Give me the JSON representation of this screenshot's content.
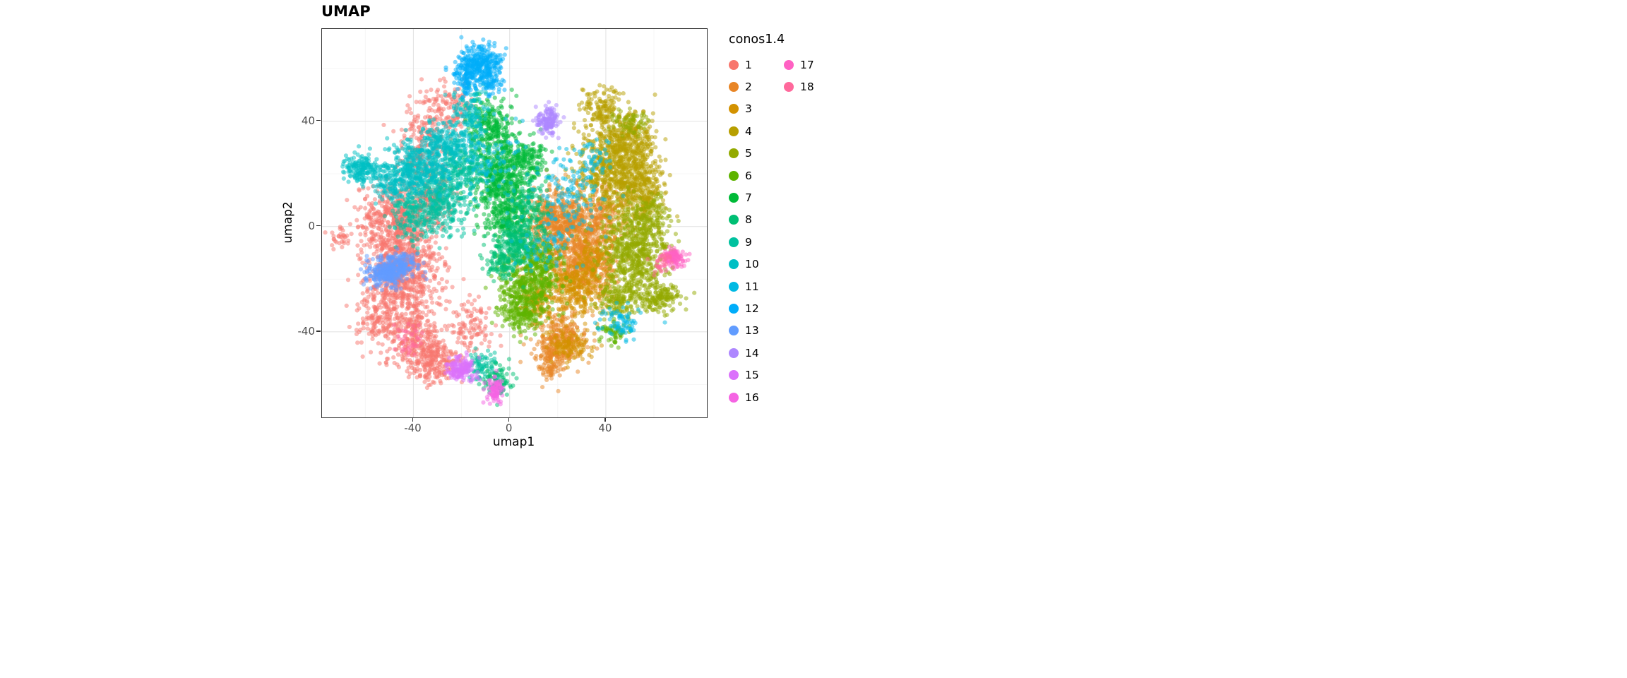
{
  "chart_data": {
    "type": "scatter",
    "title": "UMAP",
    "xlabel": "umap1",
    "ylabel": "umap2",
    "xlim": [
      -78,
      82
    ],
    "ylim": [
      -72.5,
      75
    ],
    "xticks": [
      -40,
      0,
      40
    ],
    "yticks": [
      -40,
      0,
      40
    ],
    "grid": {
      "major_color": "#e4e4e4",
      "minor_color": "#f4f4f4",
      "minor_x": [
        -60,
        -20,
        20,
        60
      ],
      "minor_y": [
        -60,
        -20,
        20,
        60
      ]
    },
    "legend_title": "conos1.4",
    "legend_columns": [
      16,
      2
    ],
    "legend_position": "right",
    "point_style": {
      "radius": 3.1,
      "alpha": 0.5
    },
    "series": [
      {
        "name": "1",
        "color": "#F8766D",
        "blobs": [
          [
            -45,
            -18,
            8,
            12,
            900
          ],
          [
            -48,
            2,
            7,
            7,
            350
          ],
          [
            -38,
            -45,
            6,
            6,
            250
          ],
          [
            -30,
            -52,
            5,
            4,
            150
          ],
          [
            -36,
            30,
            5,
            9,
            200
          ],
          [
            -25,
            45,
            5,
            5,
            120
          ],
          [
            -15,
            -38,
            5,
            5,
            100
          ],
          [
            -55,
            -35,
            4,
            4,
            80
          ],
          [
            -70,
            -4,
            2,
            2,
            30
          ],
          [
            -35,
            10,
            6,
            6,
            150
          ]
        ]
      },
      {
        "name": "2",
        "color": "#E88526",
        "blobs": [
          [
            26,
            -4,
            8,
            8,
            700
          ],
          [
            17,
            4,
            5,
            5,
            200
          ],
          [
            32,
            -16,
            6,
            5,
            250
          ],
          [
            22,
            -42,
            5,
            5,
            250
          ],
          [
            17,
            -51,
            3.5,
            3.5,
            120
          ],
          [
            38,
            5,
            5,
            5,
            150
          ]
        ]
      },
      {
        "name": "3",
        "color": "#D39200",
        "blobs": [
          [
            27,
            -24,
            7,
            5,
            300
          ],
          [
            12,
            -28,
            4,
            4,
            120
          ],
          [
            24,
            -45,
            4,
            3,
            120
          ],
          [
            35,
            -12,
            5,
            4,
            120
          ]
        ]
      },
      {
        "name": "4",
        "color": "#B79F00",
        "blobs": [
          [
            45,
            22,
            8,
            9,
            800
          ],
          [
            38,
            45,
            4,
            4,
            130
          ],
          [
            56,
            12,
            5,
            5,
            200
          ],
          [
            50,
            34,
            5,
            4,
            150
          ]
        ]
      },
      {
        "name": "5",
        "color": "#93AA00",
        "blobs": [
          [
            52,
            -12,
            7,
            8,
            600
          ],
          [
            63,
            -27,
            4,
            3,
            150
          ],
          [
            45,
            -28,
            5,
            4,
            150
          ],
          [
            57,
            3,
            5,
            5,
            150
          ],
          [
            50,
            40,
            4,
            3,
            70
          ]
        ]
      },
      {
        "name": "6",
        "color": "#5EB300",
        "blobs": [
          [
            8,
            -22,
            6,
            6,
            400
          ],
          [
            4,
            -33,
            4,
            4,
            150
          ],
          [
            14,
            -12,
            4,
            4,
            120
          ],
          [
            43,
            -40,
            3,
            2.5,
            60
          ]
        ]
      },
      {
        "name": "7",
        "color": "#00BA38",
        "blobs": [
          [
            -3,
            18,
            6,
            9,
            550
          ],
          [
            -8,
            39,
            5,
            5,
            200
          ],
          [
            0,
            3,
            5,
            4,
            150
          ],
          [
            8,
            25,
            4,
            4,
            120
          ]
        ]
      },
      {
        "name": "8",
        "color": "#00BF74",
        "blobs": [
          [
            4,
            -5,
            5,
            5,
            250
          ],
          [
            -3,
            -13,
            4,
            4,
            130
          ],
          [
            -5,
            -58,
            3,
            3,
            90
          ],
          [
            10,
            10,
            4,
            4,
            100
          ]
        ]
      },
      {
        "name": "9",
        "color": "#00C19F",
        "blobs": [
          [
            -29,
            12,
            7,
            7,
            400
          ],
          [
            -18,
            24,
            5,
            5,
            200
          ],
          [
            -12,
            -53,
            3,
            2.5,
            70
          ],
          [
            -40,
            5,
            5,
            5,
            150
          ]
        ]
      },
      {
        "name": "10",
        "color": "#00BFC4",
        "blobs": [
          [
            -62,
            22,
            4,
            2.8,
            180
          ],
          [
            -38,
            22,
            7,
            5,
            400
          ],
          [
            -26,
            32,
            5,
            4,
            200
          ],
          [
            -16,
            44,
            4,
            5,
            130
          ],
          [
            -48,
            16,
            4,
            3,
            100
          ]
        ]
      },
      {
        "name": "11",
        "color": "#00B9E3",
        "blobs": [
          [
            25,
            12,
            9,
            7,
            120
          ],
          [
            46,
            -36,
            4,
            3,
            80
          ],
          [
            -5,
            25,
            8,
            7,
            70
          ],
          [
            15,
            -8,
            6,
            5,
            60
          ],
          [
            33,
            25,
            5,
            4,
            50
          ]
        ]
      },
      {
        "name": "12",
        "color": "#00ADFA",
        "blobs": [
          [
            -12,
            62,
            4.5,
            3.5,
            300
          ],
          [
            -18,
            56,
            3,
            3,
            90
          ],
          [
            -8,
            55,
            2.5,
            2.5,
            60
          ]
        ]
      },
      {
        "name": "13",
        "color": "#619CFF",
        "blobs": [
          [
            -50,
            -17,
            4.5,
            3,
            300
          ],
          [
            -44,
            -14,
            2.5,
            2,
            80
          ]
        ]
      },
      {
        "name": "14",
        "color": "#AE87FF",
        "blobs": [
          [
            16,
            40,
            2.2,
            2.2,
            140
          ]
        ]
      },
      {
        "name": "15",
        "color": "#DB72FB",
        "blobs": [
          [
            -20,
            -54,
            2.8,
            2.2,
            160
          ]
        ]
      },
      {
        "name": "16",
        "color": "#F564E3",
        "blobs": [
          [
            -6,
            -62,
            1.8,
            2.8,
            90
          ]
        ]
      },
      {
        "name": "17",
        "color": "#FF61C3",
        "blobs": [
          [
            68,
            -12,
            2.3,
            1.8,
            110
          ]
        ]
      },
      {
        "name": "18",
        "color": "#FF699C",
        "blobs": [
          [
            -42,
            -44,
            3,
            3,
            40
          ],
          [
            63,
            -14,
            2,
            2,
            30
          ]
        ]
      }
    ]
  },
  "colors": {
    "panel_border": "#2f2f2f",
    "tick": "#2f2f2f",
    "tick_label": "#4d4d4d",
    "text": "#000000",
    "background": "#ffffff"
  }
}
